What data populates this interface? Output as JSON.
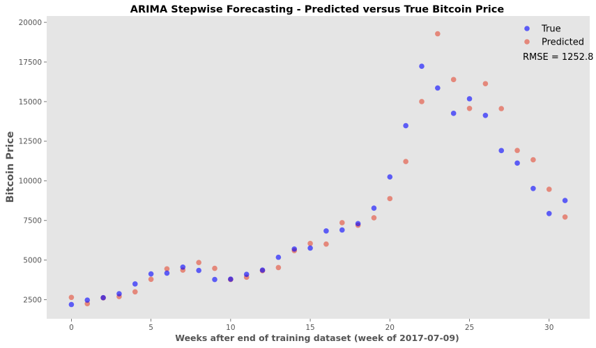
{
  "chart_data": {
    "type": "scatter",
    "title": "ARIMA Stepwise Forecasting - Predicted versus True Bitcoin Price",
    "xlabel": "Weeks after end of training dataset (week of 2017-07-09)",
    "ylabel": "Bitcoin Price",
    "xlim": [
      -1.55,
      32.55
    ],
    "ylim": [
      1300,
      20400
    ],
    "xticks": [
      0,
      5,
      10,
      15,
      20,
      25,
      30
    ],
    "yticks": [
      2500,
      5000,
      7500,
      10000,
      12500,
      15000,
      17500,
      20000
    ],
    "grid": false,
    "background": "#e5e5e5",
    "legend_position": "top-right",
    "annotation": "RMSE = 1252.8",
    "x": [
      0,
      1,
      2,
      3,
      4,
      5,
      6,
      7,
      8,
      9,
      10,
      11,
      12,
      13,
      14,
      15,
      16,
      17,
      18,
      19,
      20,
      21,
      22,
      23,
      24,
      25,
      26,
      27,
      28,
      29,
      30,
      31
    ],
    "series": [
      {
        "name": "True",
        "color": "#0000ff",
        "alpha": 0.6,
        "values": [
          2200,
          2480,
          2630,
          2880,
          3500,
          4130,
          4180,
          4560,
          4350,
          3780,
          3800,
          4100,
          4370,
          5180,
          5700,
          5760,
          6840,
          6900,
          7300,
          8280,
          10250,
          13480,
          17230,
          15860,
          14260,
          15180,
          14130,
          11910,
          11120,
          9520,
          7940,
          8760
        ]
      },
      {
        "name": "Predicted",
        "color": "#e24a33",
        "alpha": 0.6,
        "values": [
          2650,
          2250,
          2620,
          2700,
          3000,
          3790,
          4450,
          4370,
          4850,
          4480,
          3780,
          3920,
          4330,
          4530,
          5600,
          6050,
          6010,
          7360,
          7200,
          7670,
          8880,
          11220,
          15000,
          19280,
          16390,
          14570,
          16130,
          14560,
          11920,
          11330,
          9470,
          7720
        ]
      }
    ]
  }
}
